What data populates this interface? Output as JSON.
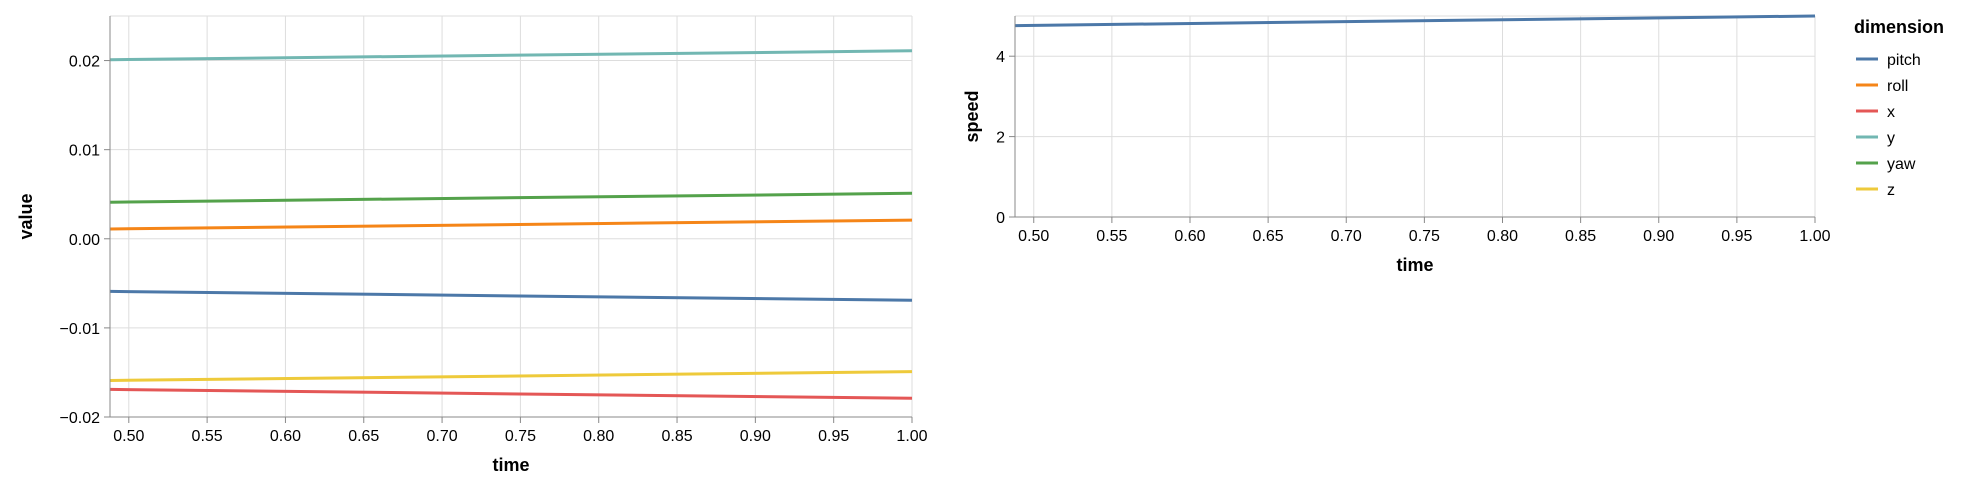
{
  "chart_data": [
    {
      "type": "line",
      "xlabel": "time",
      "ylabel": "value",
      "xlim": [
        0.488,
        1.0
      ],
      "ylim": [
        -0.02,
        0.025
      ],
      "xticks": [
        0.5,
        0.55,
        0.6,
        0.65,
        0.7,
        0.75,
        0.8,
        0.85,
        0.9,
        0.95,
        1.0
      ],
      "xtick_labels": [
        "0.50",
        "0.55",
        "0.60",
        "0.65",
        "0.70",
        "0.75",
        "0.80",
        "0.85",
        "0.90",
        "0.95",
        "1.00"
      ],
      "yticks": [
        -0.02,
        -0.01,
        0.0,
        0.01,
        0.02
      ],
      "ytick_labels": [
        "−0.02",
        "−0.01",
        "0.00",
        "0.01",
        "0.02"
      ],
      "grid": true,
      "series": [
        {
          "name": "pitch",
          "x": [
            0.488,
            1.0
          ],
          "y": [
            -0.0059,
            -0.0069
          ]
        },
        {
          "name": "roll",
          "x": [
            0.488,
            1.0
          ],
          "y": [
            0.0011,
            0.0021
          ]
        },
        {
          "name": "x",
          "x": [
            0.488,
            1.0
          ],
          "y": [
            -0.0169,
            -0.0179
          ]
        },
        {
          "name": "y",
          "x": [
            0.488,
            1.0
          ],
          "y": [
            0.0201,
            0.0211
          ]
        },
        {
          "name": "yaw",
          "x": [
            0.488,
            1.0
          ],
          "y": [
            0.0041,
            0.0051
          ]
        },
        {
          "name": "z",
          "x": [
            0.488,
            1.0
          ],
          "y": [
            -0.0159,
            -0.0149
          ]
        }
      ]
    },
    {
      "type": "line",
      "xlabel": "time",
      "ylabel": "speed",
      "xlim": [
        0.488,
        1.0
      ],
      "ylim": [
        0,
        5
      ],
      "xticks": [
        0.5,
        0.55,
        0.6,
        0.65,
        0.7,
        0.75,
        0.8,
        0.85,
        0.9,
        0.95,
        1.0
      ],
      "xtick_labels": [
        "0.50",
        "0.55",
        "0.60",
        "0.65",
        "0.70",
        "0.75",
        "0.80",
        "0.85",
        "0.90",
        "0.95",
        "1.00"
      ],
      "yticks": [
        0,
        2,
        4
      ],
      "ytick_labels": [
        "0",
        "2",
        "4"
      ],
      "grid": true,
      "series": [
        {
          "name": "pitch",
          "x": [
            0.488,
            1.0
          ],
          "y": [
            4.76,
            5.0
          ]
        }
      ]
    }
  ],
  "legend": {
    "title": "dimension",
    "placement": "right",
    "items": [
      {
        "label": "pitch",
        "color": "#4c78a8"
      },
      {
        "label": "roll",
        "color": "#f58518"
      },
      {
        "label": "x",
        "color": "#e45756"
      },
      {
        "label": "y",
        "color": "#72b7b2"
      },
      {
        "label": "yaw",
        "color": "#54a24b"
      },
      {
        "label": "z",
        "color": "#eeca3b"
      }
    ]
  }
}
